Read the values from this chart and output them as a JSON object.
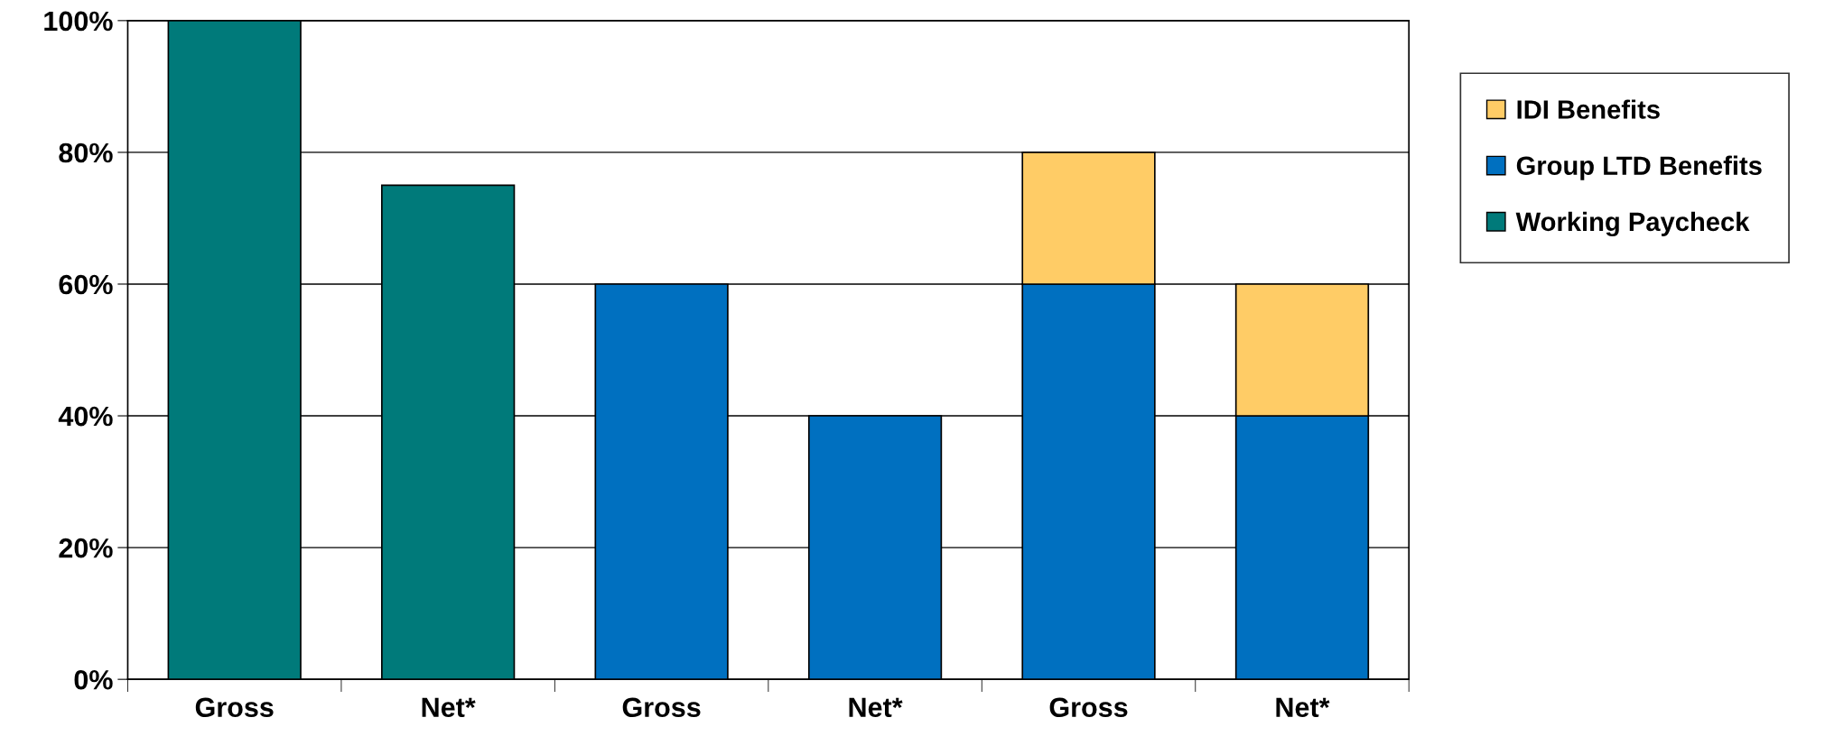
{
  "chart_data": {
    "type": "bar",
    "stacked": true,
    "categories": [
      "Gross",
      "Net*",
      "Gross",
      "Net*",
      "Gross",
      "Net*"
    ],
    "series": [
      {
        "name": "Working Paycheck",
        "color": "#007a7a",
        "values": [
          100,
          75,
          null,
          null,
          null,
          null
        ]
      },
      {
        "name": "Group LTD Benefits",
        "color": "#0070c0",
        "values": [
          null,
          null,
          60,
          40,
          60,
          40
        ]
      },
      {
        "name": "IDI Benefits",
        "color": "#ffcc66",
        "values": [
          null,
          null,
          null,
          null,
          20,
          20
        ]
      }
    ],
    "ylim": [
      0,
      100
    ],
    "yticks": [
      {
        "value": 0,
        "label": "0%"
      },
      {
        "value": 20,
        "label": "20%"
      },
      {
        "value": 40,
        "label": "40%"
      },
      {
        "value": 60,
        "label": "60%"
      },
      {
        "value": 80,
        "label": "80%"
      },
      {
        "value": 100,
        "label": "100%"
      }
    ],
    "grid": "y",
    "legend": "right"
  }
}
